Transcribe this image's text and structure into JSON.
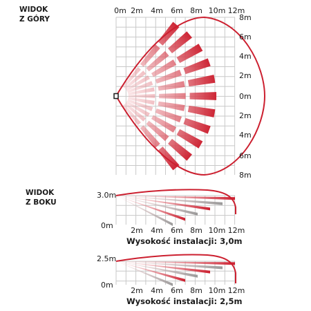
{
  "top_view": {
    "title_line1": "WIDOK",
    "title_line2": "Z GÓRY",
    "x_labels": [
      "0m",
      "2m",
      "4m",
      "6m",
      "8m",
      "10m",
      "12m"
    ],
    "y_labels": [
      "8m",
      "6m",
      "4m",
      "2m",
      "0m",
      "2m",
      "4m",
      "6m",
      "8m"
    ]
  },
  "side_view_1": {
    "title_line1": "WIDOK",
    "title_line2": "Z BOKU",
    "height_label": "3.0m",
    "zero_label": "0m",
    "x_labels": [
      "2m",
      "4m",
      "6m",
      "8m",
      "10m",
      "12m"
    ],
    "caption": "Wysokość instalacji: 3,0m"
  },
  "side_view_2": {
    "height_label": "2.5m",
    "zero_label": "0m",
    "x_labels": [
      "2m",
      "4m",
      "6m",
      "8m",
      "10m",
      "12m"
    ],
    "caption": "Wysokość instalacji: 2,5m"
  },
  "colors": {
    "outline": "#cc1f2f",
    "grid": "#c8c8c8",
    "beam_dark": "#cc1f2f",
    "beam_light": "#f6c9cc",
    "beam_gray": "#9a9a9a"
  }
}
